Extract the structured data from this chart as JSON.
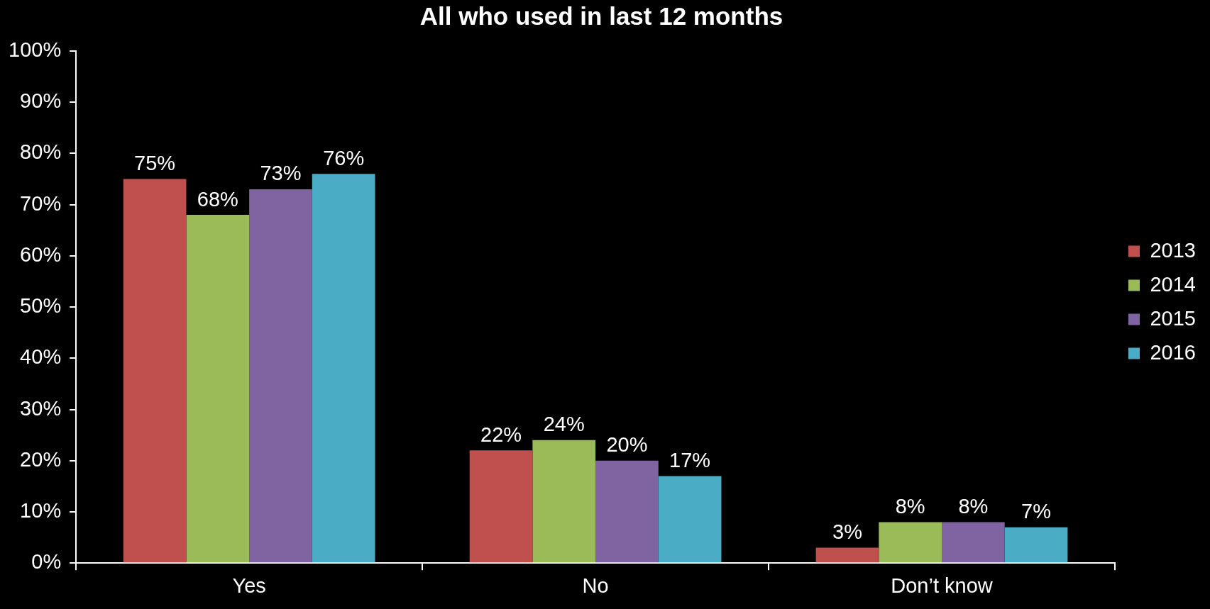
{
  "chart_data": {
    "type": "bar",
    "title": "All who used in last 12 months",
    "categories": [
      "Yes",
      "No",
      "Don’t know"
    ],
    "series": [
      {
        "name": "2013",
        "color": "#c0504d",
        "values": [
          75,
          22,
          3
        ],
        "value_labels": [
          "75%",
          "22%",
          "3%"
        ]
      },
      {
        "name": "2014",
        "color": "#9bbb59",
        "values": [
          68,
          24,
          8
        ],
        "value_labels": [
          "68%",
          "24%",
          "8%"
        ]
      },
      {
        "name": "2015",
        "color": "#8064a2",
        "values": [
          73,
          20,
          8
        ],
        "value_labels": [
          "73%",
          "20%",
          "8%"
        ]
      },
      {
        "name": "2016",
        "color": "#4bacc6",
        "values": [
          76,
          17,
          7
        ],
        "value_labels": [
          "76%",
          "17%",
          "7%"
        ]
      }
    ],
    "ylim": [
      0,
      100
    ],
    "yticks": [
      {
        "value": 0,
        "label": "0%"
      },
      {
        "value": 10,
        "label": "10%"
      },
      {
        "value": 20,
        "label": "20%"
      },
      {
        "value": 30,
        "label": "30%"
      },
      {
        "value": 40,
        "label": "40%"
      },
      {
        "value": 50,
        "label": "50%"
      },
      {
        "value": 60,
        "label": "60%"
      },
      {
        "value": 70,
        "label": "70%"
      },
      {
        "value": 80,
        "label": "80%"
      },
      {
        "value": 90,
        "label": "90%"
      },
      {
        "value": 100,
        "label": "100%"
      }
    ],
    "grid": false,
    "legend": "right"
  }
}
